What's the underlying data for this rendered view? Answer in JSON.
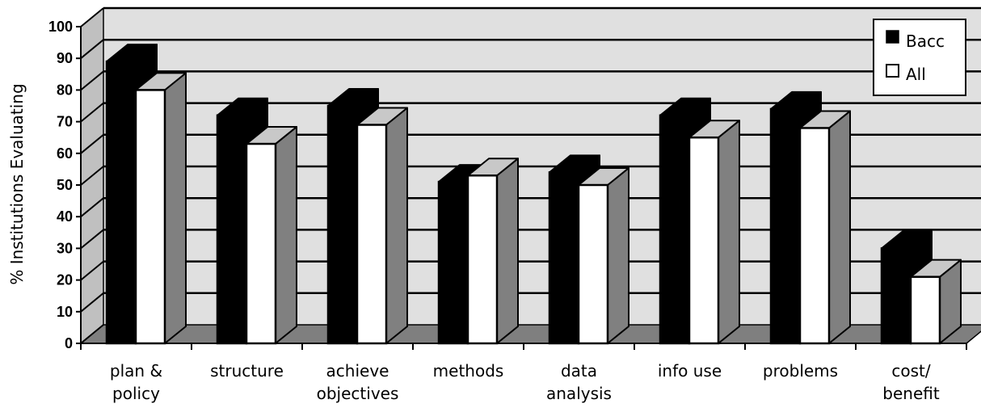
{
  "chart_data": {
    "type": "bar",
    "title": "",
    "xlabel": "",
    "ylabel": "% Institutions Evaluating",
    "ylim": [
      0,
      100
    ],
    "yticks": [
      0,
      10,
      20,
      30,
      40,
      50,
      60,
      70,
      80,
      90,
      100
    ],
    "categories": [
      [
        "plan &",
        "policy"
      ],
      [
        "structure"
      ],
      [
        "achieve",
        "objectives"
      ],
      [
        "methods"
      ],
      [
        "data",
        "analysis"
      ],
      [
        "info use"
      ],
      [
        "problems"
      ],
      [
        "cost/",
        "benefit"
      ]
    ],
    "series": [
      {
        "name": "Bacc",
        "values": [
          89,
          72,
          75,
          51,
          54,
          72,
          74,
          30
        ]
      },
      {
        "name": "All",
        "values": [
          80,
          63,
          69,
          53,
          50,
          65,
          68,
          21
        ]
      }
    ],
    "grid": true,
    "legend_position": "top-right",
    "style": "3d-bar",
    "colors": {
      "bacc_front": "#000000",
      "all_front": "#ffffff",
      "all_top": "#c8c8c8",
      "all_side": "#808080",
      "wall": "#e0e0e0",
      "floor": "#7f7f7f",
      "gridline": "#000000"
    }
  }
}
